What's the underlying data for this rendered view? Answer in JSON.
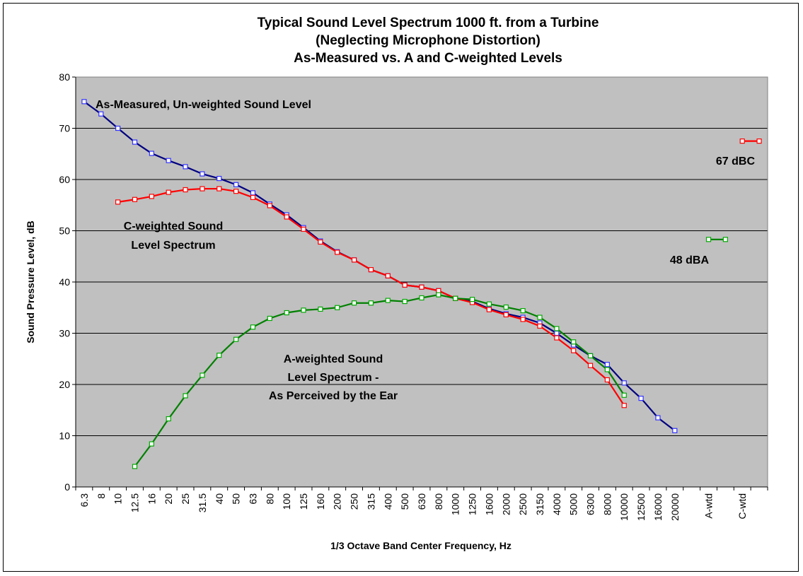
{
  "chart_data": {
    "type": "line",
    "title": [
      "Typical Sound Level Spectrum 1000 ft. from a Turbine",
      "(Neglecting Microphone Distortion)",
      "As-Measured vs. A and C-weighted Levels"
    ],
    "xlabel": "1/3 Octave Band Center Frequency, Hz",
    "ylabel": "Sound Pressure Level, dB",
    "ylim": [
      0,
      80
    ],
    "yticks": [
      "0",
      "10",
      "20",
      "30",
      "40",
      "50",
      "60",
      "70",
      "80"
    ],
    "grid": true,
    "categories": [
      "6.3",
      "8",
      "10",
      "12.5",
      "16",
      "20",
      "25",
      "31.5",
      "40",
      "50",
      "63",
      "80",
      "100",
      "125",
      "160",
      "200",
      "250",
      "315",
      "400",
      "500",
      "630",
      "800",
      "1000",
      "1250",
      "1600",
      "2000",
      "2500",
      "3150",
      "4000",
      "5000",
      "6300",
      "8000",
      "10000",
      "12500",
      "16000",
      "20000",
      "",
      "A-wtd",
      "",
      "C-wtd",
      ""
    ],
    "series": [
      {
        "key": "unweighted",
        "color": "#000080",
        "marker": "#3333ff",
        "values": [
          75.2,
          72.8,
          70,
          67.3,
          65.1,
          63.7,
          62.5,
          61.1,
          60.2,
          59,
          57.4,
          55.2,
          53.1,
          50.6,
          48,
          45.9,
          44.3,
          42.4,
          41.2,
          39.4,
          39,
          38.3,
          36.8,
          36.2,
          34.8,
          33.8,
          33.1,
          32,
          30,
          27.7,
          25.6,
          23.9,
          20.3,
          17.3,
          13.5,
          11,
          null,
          null,
          null,
          null,
          null
        ]
      },
      {
        "key": "c_weighted",
        "color": "#ff0000",
        "marker": "#ff0000",
        "values": [
          null,
          null,
          55.6,
          56.1,
          56.7,
          57.5,
          58,
          58.2,
          58.2,
          57.7,
          56.5,
          54.9,
          52.7,
          50.3,
          47.8,
          45.8,
          44.3,
          42.4,
          41.2,
          39.4,
          39,
          38.3,
          36.8,
          36,
          34.6,
          33.6,
          32.7,
          31.4,
          29.1,
          26.6,
          23.7,
          20.9,
          15.9,
          null,
          null,
          null,
          null,
          null,
          null,
          67.5,
          67.5
        ]
      },
      {
        "key": "a_weighted",
        "color": "#008000",
        "marker": "#00aa00",
        "values": [
          null,
          null,
          null,
          4,
          8.4,
          13.3,
          17.8,
          21.8,
          25.7,
          28.8,
          31.2,
          32.9,
          34,
          34.5,
          34.7,
          35,
          35.9,
          35.9,
          36.4,
          36.2,
          36.9,
          37.5,
          36.8,
          36.6,
          35.7,
          35.1,
          34.4,
          33.1,
          30.9,
          28.3,
          25.6,
          22.9,
          17.9,
          null,
          null,
          null,
          null,
          48.3,
          48.3,
          null,
          null
        ]
      }
    ],
    "annotations": {
      "unweighted": "As-Measured, Un-weighted Sound Level",
      "c_weighted_line1": "C-weighted Sound",
      "c_weighted_line2": "Level Spectrum",
      "a_weighted_line1": "A-weighted Sound",
      "a_weighted_line2": "Level Spectrum -",
      "a_weighted_line3": "As Perceived by the Ear",
      "dbc": "67 dBC",
      "dba": "48 dBA"
    },
    "plot_background": "#c0c0c0"
  }
}
